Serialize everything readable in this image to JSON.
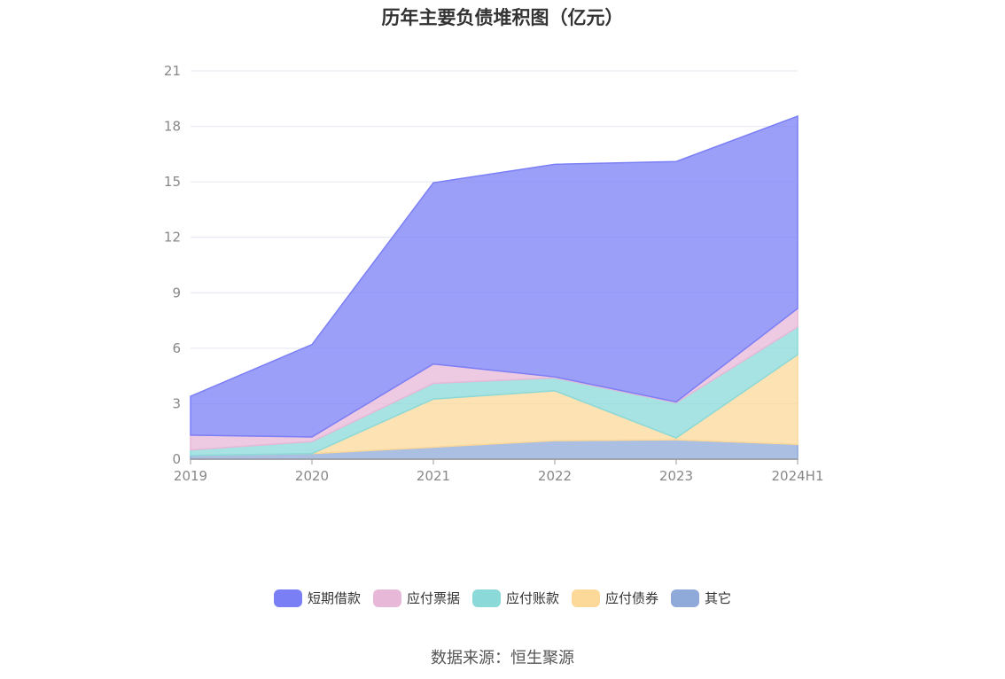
{
  "chart_data": {
    "type": "area",
    "title": "历年主要负债堆积图（亿元）",
    "categories": [
      "2019",
      "2020",
      "2021",
      "2022",
      "2023",
      "2024H1"
    ],
    "yticks": [
      "0",
      "3",
      "6",
      "9",
      "12",
      "15",
      "18",
      "21"
    ],
    "ylim": [
      0,
      21
    ],
    "stacked": true,
    "grid": true,
    "legend_position": "bottom",
    "series": [
      {
        "name": "其它",
        "color": "#8fa9d8",
        "values": [
          0.2,
          0.3,
          0.65,
          1.0,
          1.05,
          0.8
        ]
      },
      {
        "name": "应付债券",
        "color": "#fcd999",
        "values": [
          0.0,
          0.0,
          2.6,
          2.7,
          0.1,
          4.85
        ]
      },
      {
        "name": "应付账款",
        "color": "#8bd9d9",
        "values": [
          0.3,
          0.65,
          0.85,
          0.7,
          1.9,
          1.5
        ]
      },
      {
        "name": "应付票据",
        "color": "#e8b8d8",
        "values": [
          0.8,
          0.25,
          1.05,
          0.05,
          0.05,
          1.0
        ]
      },
      {
        "name": "短期借款",
        "color": "#7b7ff5",
        "values": [
          2.1,
          5.0,
          9.8,
          11.5,
          13.0,
          10.4
        ]
      }
    ]
  },
  "legend": [
    "短期借款",
    "应付票据",
    "应付账款",
    "应付债券",
    "其它"
  ],
  "source": "数据来源：恒生聚源"
}
